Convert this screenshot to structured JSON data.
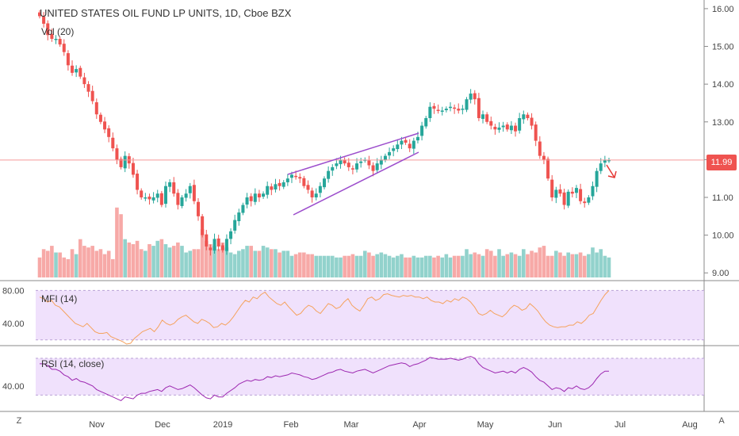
{
  "header": {
    "title": "UNITED STATES OIL FUND LP UNITS, 1D, Cboe BZX",
    "volume_label": "Vol (20)"
  },
  "indicators": {
    "mfi_label": "MFI (14)",
    "rsi_label": "RSI (14, close)"
  },
  "price_badge": "11.99",
  "footer": {
    "left_button": "Z",
    "right_button": "A"
  },
  "colors": {
    "up": "#26a69a",
    "down": "#ef5350",
    "indicator_band": "#ead4fb",
    "mfi_line": "#f5a25d",
    "rsi_line": "#9c27b0",
    "channel_line": "#9c4dcc",
    "price_line": "#f59a9a",
    "arrow": "#e53935"
  },
  "chart_data": [
    {
      "type": "candlestick",
      "title": "UNITED STATES OIL FUND LP UNITS, 1D, Cboe BZX",
      "y_ticks": [
        "16.00",
        "15.00",
        "14.00",
        "13.00",
        "12.00",
        "11.00",
        "10.00",
        "9.00"
      ],
      "ylim": [
        8.9,
        16.25
      ],
      "x_ticks": [
        "Nov",
        "Dec",
        "2019",
        "Feb",
        "Mar",
        "Apr",
        "May",
        "Jun",
        "Jul",
        "Aug"
      ],
      "last_price": 11.99,
      "series": [
        {
          "name": "Vol (20)",
          "closes": [
            15.8,
            15.6,
            15.3,
            15.2,
            15.2,
            15.05,
            14.85,
            14.5,
            14.3,
            14.4,
            14.2,
            14.0,
            13.8,
            13.55,
            13.2,
            13.0,
            12.8,
            12.6,
            12.3,
            12.0,
            11.8,
            12.1,
            11.9,
            11.6,
            11.2,
            11.0,
            11.0,
            10.95,
            11.0,
            11.1,
            10.8,
            11.3,
            11.4,
            11.1,
            10.8,
            11.0,
            11.1,
            11.3,
            10.9,
            10.5,
            10.0,
            9.7,
            9.6,
            9.9,
            9.7,
            9.6,
            9.9,
            10.1,
            10.4,
            10.6,
            10.8,
            11.0,
            10.9,
            11.1,
            11.0,
            11.1,
            11.3,
            11.2,
            11.35,
            11.3,
            11.4,
            11.5,
            11.6,
            11.55,
            11.5,
            11.3,
            11.2,
            11.0,
            11.1,
            11.3,
            11.5,
            11.7,
            11.8,
            11.9,
            12.0,
            11.9,
            11.8,
            11.75,
            11.9,
            11.95,
            12.0,
            11.85,
            11.7,
            11.9,
            12.0,
            12.1,
            12.2,
            12.3,
            12.4,
            12.5,
            12.45,
            12.3,
            12.5,
            12.6,
            12.9,
            13.1,
            13.4,
            13.35,
            13.3,
            13.3,
            13.35,
            13.4,
            13.35,
            13.3,
            13.35,
            13.6,
            13.75,
            13.6,
            13.1,
            13.2,
            13.0,
            12.9,
            12.8,
            12.85,
            12.9,
            12.8,
            12.9,
            12.75,
            13.1,
            13.2,
            13.1,
            12.9,
            12.5,
            12.1,
            12.0,
            11.5,
            11.0,
            11.2,
            11.1,
            10.8,
            11.15,
            11.1,
            11.25,
            10.9,
            10.85,
            11.0,
            11.3,
            11.7,
            11.9,
            12.0,
            11.99
          ],
          "volumes": [
            1.2,
            1.7,
            1.6,
            1.9,
            1.5,
            1.5,
            1.2,
            1.1,
            1.7,
            1.4,
            2.3,
            1.9,
            1.8,
            1.9,
            1.6,
            1.7,
            1.4,
            1.6,
            1.1,
            4.2,
            3.8,
            2.3,
            2.1,
            2.0,
            2.2,
            1.7,
            1.6,
            2.0,
            1.9,
            2.2,
            2.3,
            2.0,
            1.8,
            1.9,
            2.1,
            1.9,
            1.5,
            1.6,
            1.7,
            1.7,
            2.9,
            2.2,
            2.0,
            1.9,
            1.7,
            2.1,
            1.8,
            1.5,
            1.4,
            1.6,
            1.7,
            1.9,
            1.9,
            1.6,
            1.6,
            1.9,
            1.8,
            1.7,
            1.7,
            1.5,
            1.6,
            1.6,
            1.3,
            1.4,
            1.5,
            1.5,
            1.4,
            1.4,
            1.3,
            1.3,
            1.3,
            1.3,
            1.3,
            1.2,
            1.2,
            1.3,
            1.3,
            1.4,
            1.3,
            1.3,
            1.6,
            1.5,
            1.3,
            1.4,
            1.5,
            1.4,
            1.3,
            1.2,
            1.3,
            1.4,
            1.2,
            1.2,
            1.3,
            1.2,
            1.2,
            1.3,
            1.3,
            1.2,
            1.3,
            1.2,
            1.4,
            1.2,
            1.3,
            1.3,
            1.3,
            1.7,
            1.4,
            1.5,
            1.4,
            1.3,
            1.7,
            1.6,
            1.3,
            1.7,
            1.3,
            1.4,
            1.5,
            1.4,
            1.3,
            1.7,
            1.4,
            1.6,
            1.5,
            1.8,
            1.9,
            1.3,
            1.3,
            1.6,
            1.5,
            1.3,
            1.5,
            1.4,
            1.4,
            1.5,
            1.3,
            1.4,
            1.8,
            1.5,
            1.7,
            1.3,
            1.2
          ]
        },
        {
          "name": "MFI (14)",
          "y_ticks": [
            "80.00",
            "40.00"
          ],
          "ylim": [
            15,
            90
          ],
          "band": [
            20,
            80
          ],
          "values": [
            72,
            70,
            66,
            68,
            62,
            60,
            55,
            50,
            45,
            40,
            38,
            36,
            40,
            35,
            30,
            28,
            28,
            29,
            24,
            22,
            20,
            18,
            15,
            16,
            22,
            26,
            30,
            32,
            34,
            30,
            36,
            44,
            40,
            38,
            40,
            45,
            48,
            50,
            46,
            42,
            40,
            45,
            43,
            40,
            35,
            36,
            40,
            38,
            42,
            48,
            55,
            62,
            68,
            66,
            72,
            70,
            75,
            78,
            72,
            68,
            64,
            62,
            66,
            60,
            55,
            50,
            52,
            58,
            62,
            60,
            55,
            52,
            58,
            64,
            62,
            58,
            60,
            66,
            70,
            62,
            58,
            55,
            62,
            70,
            72,
            68,
            70,
            75,
            76,
            74,
            73,
            72,
            74,
            73,
            74,
            72,
            72,
            70,
            72,
            68,
            66,
            66,
            64,
            68,
            66,
            70,
            68,
            72,
            70,
            66,
            60,
            52,
            50,
            52,
            56,
            52,
            50,
            48,
            52,
            58,
            62,
            60,
            56,
            58,
            64,
            60,
            55,
            48,
            42,
            38,
            36,
            35,
            36,
            36,
            38,
            38,
            42,
            40,
            44,
            50,
            52,
            60,
            68,
            75,
            80
          ]
        },
        {
          "name": "RSI (14, close)",
          "y_ticks": [
            "40.00"
          ],
          "ylim": [
            14,
            82
          ],
          "band": [
            30,
            70
          ],
          "values": [
            64,
            64,
            62,
            58,
            58,
            56,
            52,
            50,
            46,
            48,
            45,
            44,
            42,
            40,
            36,
            34,
            32,
            30,
            28,
            26,
            24,
            28,
            27,
            26,
            30,
            32,
            32,
            34,
            35,
            36,
            34,
            38,
            40,
            38,
            36,
            37,
            39,
            41,
            38,
            34,
            30,
            27,
            26,
            30,
            28,
            28,
            32,
            35,
            38,
            42,
            44,
            46,
            45,
            47,
            46,
            47,
            50,
            49,
            51,
            50,
            51,
            52,
            54,
            53,
            52,
            50,
            49,
            47,
            48,
            50,
            52,
            54,
            55,
            57,
            58,
            56,
            55,
            54,
            56,
            57,
            58,
            56,
            54,
            56,
            58,
            60,
            62,
            63,
            64,
            65,
            64,
            61,
            63,
            64,
            66,
            68,
            71,
            70,
            69,
            69,
            69,
            70,
            69,
            68,
            69,
            71,
            72,
            70,
            64,
            60,
            58,
            56,
            54,
            55,
            56,
            54,
            56,
            54,
            58,
            60,
            58,
            55,
            50,
            46,
            44,
            40,
            36,
            38,
            37,
            34,
            38,
            37,
            40,
            37,
            36,
            38,
            42,
            48,
            53,
            56,
            56
          ]
        }
      ]
    }
  ]
}
